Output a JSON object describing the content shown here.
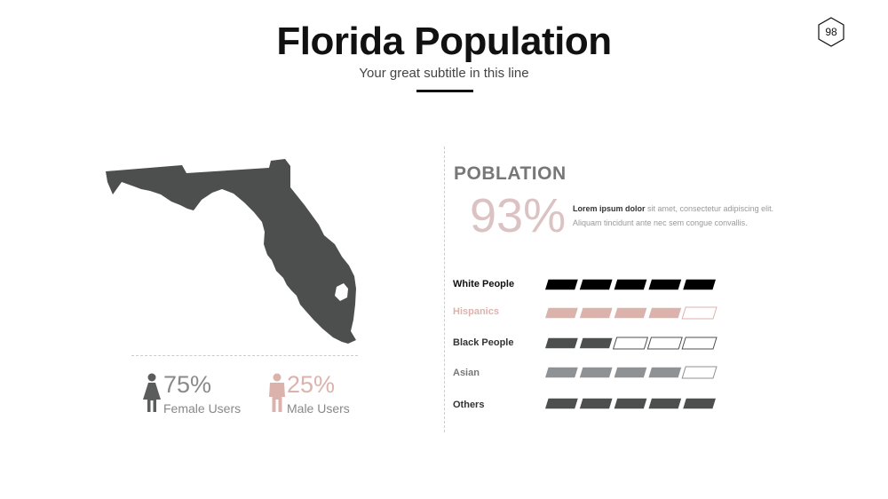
{
  "slide": {
    "title": "Florida Population",
    "subtitle": "Your great subtitle in this line",
    "page_number": "98"
  },
  "map": {
    "region": "Florida",
    "fill_color": "#4d4f4f"
  },
  "gender": [
    {
      "percent": "75%",
      "label": "Female Users",
      "icon": "female-person-icon",
      "color": "#5b5d5d"
    },
    {
      "percent": "25%",
      "label": "Male Users",
      "icon": "male-person-icon",
      "color": "#dcb3ac"
    }
  ],
  "population": {
    "heading": "POBLATION",
    "percent": "93%",
    "text_bold": "Lorem ipsum dolor",
    "text": " sit amet, consectetur adipiscing elit. Aliquam tincidunt ante nec sem congue convallis."
  },
  "chart_data": {
    "type": "bar",
    "segments_total": 5,
    "categories": [
      "White People",
      "Hispanics",
      "Black People",
      "Asian",
      "Others"
    ],
    "values": [
      5,
      4,
      2,
      4,
      5
    ],
    "colors": [
      "#000000",
      "#dcb3ac",
      "#4d4f4f",
      "#8e9294",
      "#4d4f4f"
    ],
    "label_colors": [
      "#111111",
      "#dcb3ac",
      "#333333",
      "#777777",
      "#333333"
    ]
  }
}
